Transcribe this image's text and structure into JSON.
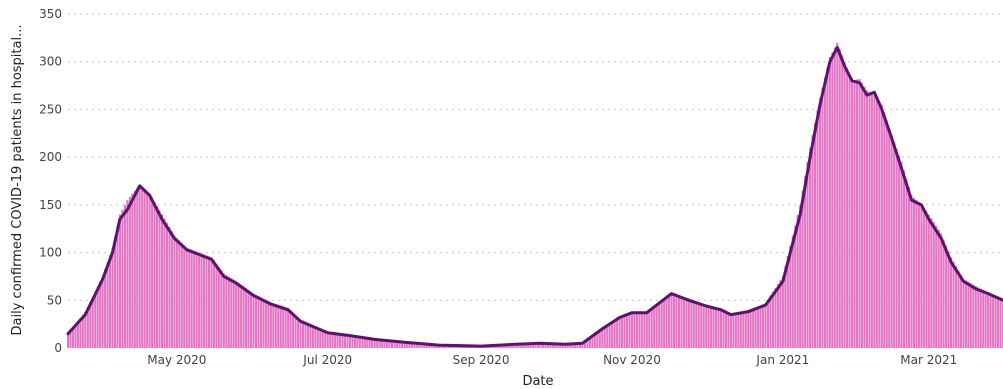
{
  "chart_data": {
    "type": "bar",
    "overlay": "line",
    "xlabel": "Date",
    "ylabel": "Daily confirmed COVID-19 patients in hospital...",
    "ylim": [
      0,
      350
    ],
    "yticks": [
      0,
      50,
      100,
      150,
      200,
      250,
      300,
      350
    ],
    "xlim": [
      "2020-03-18",
      "2021-03-31"
    ],
    "xticks": [
      {
        "date": "2020-05-01",
        "label": "May 2020"
      },
      {
        "date": "2020-07-01",
        "label": "Jul 2020"
      },
      {
        "date": "2020-09-01",
        "label": "Sep 2020"
      },
      {
        "date": "2020-11-01",
        "label": "Nov 2020"
      },
      {
        "date": "2021-01-01",
        "label": "Jan 2021"
      },
      {
        "date": "2021-03-01",
        "label": "Mar 2021"
      }
    ],
    "grid": true,
    "series": [
      {
        "kind": "bars",
        "points": [
          [
            "2020-03-18",
            15
          ],
          [
            "2020-03-25",
            38
          ],
          [
            "2020-04-01",
            75
          ],
          [
            "2020-04-05",
            105
          ],
          [
            "2020-04-08",
            140
          ],
          [
            "2020-04-11",
            155
          ],
          [
            "2020-04-14",
            165
          ],
          [
            "2020-04-16",
            170
          ],
          [
            "2020-04-20",
            162
          ],
          [
            "2020-04-25",
            140
          ],
          [
            "2020-04-30",
            118
          ],
          [
            "2020-05-05",
            105
          ],
          [
            "2020-05-10",
            100
          ],
          [
            "2020-05-15",
            95
          ],
          [
            "2020-05-20",
            78
          ],
          [
            "2020-05-25",
            70
          ],
          [
            "2020-06-01",
            57
          ],
          [
            "2020-06-08",
            48
          ],
          [
            "2020-06-15",
            42
          ],
          [
            "2020-06-20",
            30
          ],
          [
            "2020-07-01",
            17
          ],
          [
            "2020-07-10",
            14
          ],
          [
            "2020-07-20",
            10
          ],
          [
            "2020-08-01",
            6
          ],
          [
            "2020-08-15",
            3
          ],
          [
            "2020-09-01",
            2
          ],
          [
            "2020-09-15",
            4
          ],
          [
            "2020-09-25",
            6
          ],
          [
            "2020-10-05",
            4
          ],
          [
            "2020-10-12",
            6
          ],
          [
            "2020-10-20",
            22
          ],
          [
            "2020-10-27",
            33
          ],
          [
            "2020-11-01",
            38
          ],
          [
            "2020-11-07",
            38
          ],
          [
            "2020-11-12",
            48
          ],
          [
            "2020-11-17",
            57
          ],
          [
            "2020-11-24",
            52
          ],
          [
            "2020-12-01",
            45
          ],
          [
            "2020-12-07",
            42
          ],
          [
            "2020-12-11",
            36
          ],
          [
            "2020-12-18",
            40
          ],
          [
            "2020-12-25",
            47
          ],
          [
            "2021-01-01",
            75
          ],
          [
            "2021-01-08",
            150
          ],
          [
            "2021-01-12",
            210
          ],
          [
            "2021-01-16",
            262
          ],
          [
            "2021-01-20",
            305
          ],
          [
            "2021-01-23",
            320
          ],
          [
            "2021-01-26",
            300
          ],
          [
            "2021-01-29",
            280
          ],
          [
            "2021-02-01",
            282
          ],
          [
            "2021-02-04",
            270
          ],
          [
            "2021-02-07",
            265
          ],
          [
            "2021-02-10",
            255
          ],
          [
            "2021-02-14",
            222
          ],
          [
            "2021-02-18",
            195
          ],
          [
            "2021-02-22",
            160
          ],
          [
            "2021-02-26",
            150
          ],
          [
            "2021-03-01",
            140
          ],
          [
            "2021-03-06",
            120
          ],
          [
            "2021-03-10",
            95
          ],
          [
            "2021-03-15",
            72
          ],
          [
            "2021-03-20",
            65
          ],
          [
            "2021-03-25",
            58
          ],
          [
            "2021-03-31",
            52
          ]
        ]
      },
      {
        "kind": "line",
        "points": [
          [
            "2020-03-18",
            15
          ],
          [
            "2020-03-25",
            35
          ],
          [
            "2020-04-01",
            72
          ],
          [
            "2020-04-05",
            100
          ],
          [
            "2020-04-08",
            135
          ],
          [
            "2020-04-11",
            145
          ],
          [
            "2020-04-14",
            160
          ],
          [
            "2020-04-16",
            170
          ],
          [
            "2020-04-20",
            160
          ],
          [
            "2020-04-25",
            135
          ],
          [
            "2020-04-30",
            115
          ],
          [
            "2020-05-05",
            103
          ],
          [
            "2020-05-10",
            98
          ],
          [
            "2020-05-15",
            93
          ],
          [
            "2020-05-20",
            75
          ],
          [
            "2020-05-25",
            68
          ],
          [
            "2020-06-01",
            55
          ],
          [
            "2020-06-08",
            46
          ],
          [
            "2020-06-15",
            40
          ],
          [
            "2020-06-20",
            28
          ],
          [
            "2020-07-01",
            16
          ],
          [
            "2020-07-10",
            13
          ],
          [
            "2020-07-20",
            9
          ],
          [
            "2020-08-01",
            6
          ],
          [
            "2020-08-15",
            3
          ],
          [
            "2020-09-01",
            2
          ],
          [
            "2020-09-15",
            4
          ],
          [
            "2020-09-25",
            5
          ],
          [
            "2020-10-05",
            4
          ],
          [
            "2020-10-12",
            5
          ],
          [
            "2020-10-20",
            20
          ],
          [
            "2020-10-27",
            32
          ],
          [
            "2020-11-01",
            37
          ],
          [
            "2020-11-07",
            37
          ],
          [
            "2020-11-12",
            47
          ],
          [
            "2020-11-17",
            57
          ],
          [
            "2020-11-24",
            50
          ],
          [
            "2020-12-01",
            44
          ],
          [
            "2020-12-07",
            40
          ],
          [
            "2020-12-11",
            35
          ],
          [
            "2020-12-18",
            38
          ],
          [
            "2020-12-25",
            45
          ],
          [
            "2021-01-01",
            70
          ],
          [
            "2021-01-08",
            140
          ],
          [
            "2021-01-12",
            200
          ],
          [
            "2021-01-16",
            255
          ],
          [
            "2021-01-20",
            300
          ],
          [
            "2021-01-23",
            315
          ],
          [
            "2021-01-26",
            295
          ],
          [
            "2021-01-29",
            280
          ],
          [
            "2021-02-01",
            278
          ],
          [
            "2021-02-04",
            265
          ],
          [
            "2021-02-07",
            268
          ],
          [
            "2021-02-10",
            250
          ],
          [
            "2021-02-14",
            220
          ],
          [
            "2021-02-18",
            188
          ],
          [
            "2021-02-22",
            155
          ],
          [
            "2021-02-26",
            150
          ],
          [
            "2021-03-01",
            135
          ],
          [
            "2021-03-06",
            115
          ],
          [
            "2021-03-10",
            90
          ],
          [
            "2021-03-15",
            70
          ],
          [
            "2021-03-20",
            62
          ],
          [
            "2021-03-25",
            57
          ],
          [
            "2021-03-31",
            50
          ]
        ]
      }
    ],
    "colors": {
      "bars": "#e474c4",
      "line": "#5c126e",
      "grid": "#c8c8c8"
    }
  }
}
